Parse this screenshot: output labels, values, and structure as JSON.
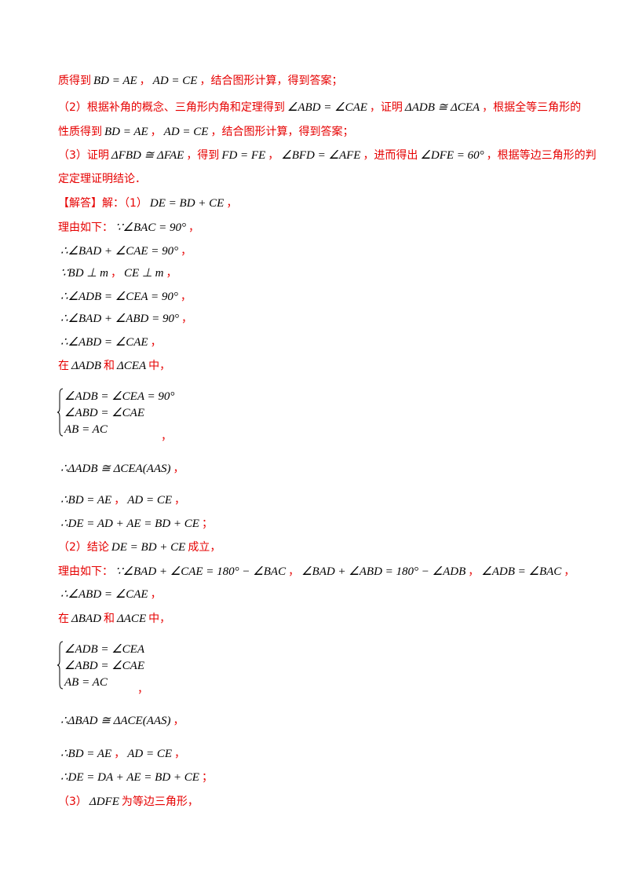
{
  "lines": [
    [
      "质得到",
      "BD = AE",
      "，",
      "AD = CE",
      "，结合图形计算，得到答案；"
    ],
    [
      "（2）根据补角的概念、三角形内角和定理得到",
      "∠ABD = ∠CAE",
      "，证明",
      "ΔADB ≅ ΔCEA",
      "，根据全等三角形的"
    ],
    [
      "性质得到",
      "BD = AE",
      "，",
      "AD = CE",
      "，结合图形计算，得到答案；"
    ],
    [
      "（3）证明",
      "ΔFBD ≅ ΔFAE",
      "，得到",
      "FD = FE",
      "，",
      "∠BFD = ∠AFE",
      "，进而得出",
      "∠DFE = 60°",
      "，根据等边三角形的判"
    ],
    [
      "定定理证明结论．"
    ],
    [
      "【解答】解：（1）",
      "DE = BD + CE",
      "，"
    ],
    [
      "理由如下：",
      "∵∠BAC = 90°",
      "，"
    ],
    [
      "∴∠BAD + ∠CAE = 90°",
      "，"
    ],
    [
      "∵BD ⊥ m",
      "，",
      "CE ⊥ m",
      "，"
    ],
    [
      "∴∠ADB = ∠CEA = 90°",
      "，"
    ],
    [
      "∴∠BAD + ∠ABD = 90°",
      "，"
    ],
    [
      "∴∠ABD = ∠CAE",
      "，"
    ],
    [
      "在",
      "ΔADB",
      "和",
      "ΔCEA",
      "中，"
    ],
    [
      "∴ΔADB ≅ ΔCEA(AAS)",
      "，"
    ],
    [
      "∴BD = AE",
      "，",
      "AD = CE",
      "，"
    ],
    [
      "∴DE = AD + AE = BD + CE",
      "；"
    ],
    [
      "（2）结论",
      "DE = BD + CE",
      "成立，"
    ],
    [
      "理由如下：",
      "∵∠BAD + ∠CAE = 180° − ∠BAC",
      "，",
      "∠BAD + ∠ABD = 180° − ∠ADB",
      "，",
      "∠ADB = ∠BAC",
      "，"
    ],
    [
      "∴∠ABD = ∠CAE",
      "，"
    ],
    [
      "在",
      "ΔBAD",
      "和",
      "ΔACE",
      "中，"
    ],
    [
      "∴ΔBAD ≅ ΔACE(AAS)",
      "，"
    ],
    [
      "∴BD = AE",
      "，",
      "AD = CE",
      "，"
    ],
    [
      "∴DE = DA + AE = BD + CE",
      "；"
    ],
    [
      "（3）",
      "ΔDFE",
      "为等边三角形，"
    ]
  ],
  "systems": [
    {
      "rows": [
        "∠ADB = ∠CEA = 90°",
        "∠ABD = ∠CAE",
        "AB = AC"
      ],
      "after": "，"
    },
    {
      "rows": [
        "∠ADB = ∠CEA",
        "∠ABD = ∠CAE",
        "AB = AC"
      ],
      "after": "，"
    }
  ]
}
